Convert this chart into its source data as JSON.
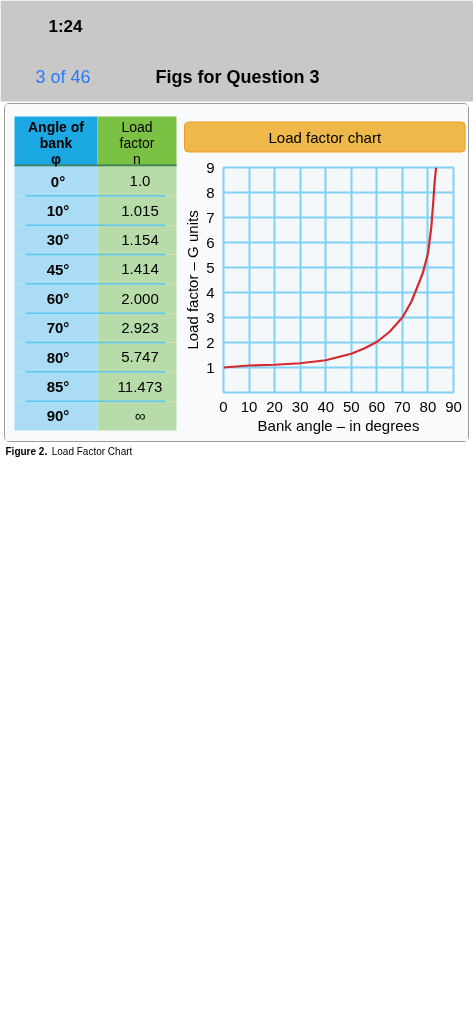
{
  "chart_data": [
    {
      "type": "other",
      "xlabel": "Angle of\nbank\nφ",
      "categories": [
        "0°",
        "10°",
        "30°",
        "45°",
        "60°",
        "70°",
        "80°",
        "85°",
        "90°"
      ],
      "series": [
        {
          "name": "Load\nfactor\nn",
          "color": "#b7dca9",
          "values": [
            1.0,
            1.015,
            1.154,
            1.414,
            2.0,
            2.923,
            5.747,
            11.473,
            null
          ],
          "value_labels": [
            "1.0",
            "1.015",
            "1.154",
            "1.414",
            "2.000",
            "2.923",
            "5.747",
            "11.473",
            "∞"
          ]
        }
      ],
      "annotations": [
        "1:24",
        "3 of 46",
        "Figs for Question 3",
        "Figure 2.",
        "Load Factor Chart"
      ]
    },
    {
      "type": "line",
      "title": "Load factor chart",
      "xlabel": "Bank angle – in degrees",
      "ylabel": "Load factor – G units",
      "x": [
        0,
        10,
        20,
        30,
        40,
        50,
        55,
        60,
        65,
        70,
        73.5,
        76,
        78,
        80,
        81.3,
        82.1,
        82.6,
        83.2
      ],
      "series": [
        {
          "color": "#d32a2f",
          "values": [
            1.0,
            1.08,
            1.11,
            1.17,
            1.29,
            1.55,
            1.76,
            2.02,
            2.43,
            3.0,
            3.63,
            4.26,
            4.78,
            5.56,
            6.6,
            7.65,
            8.4,
            9.0
          ]
        }
      ],
      "xlim": [
        0,
        90
      ],
      "ylim": [
        0,
        9
      ],
      "xticks": [
        0,
        10,
        20,
        30,
        40,
        50,
        60,
        70,
        80,
        90
      ],
      "yticks": [
        1,
        2,
        3,
        4,
        5,
        6,
        7,
        8,
        9
      ],
      "grid": true
    }
  ]
}
